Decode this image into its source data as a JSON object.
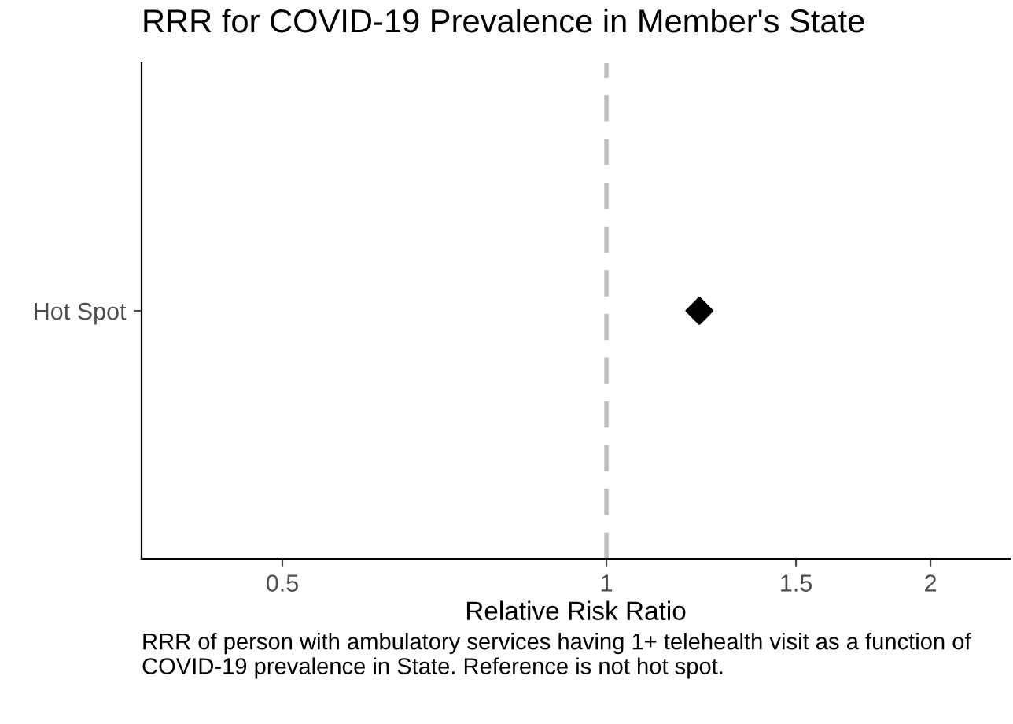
{
  "chart_data": {
    "type": "scatter",
    "title": "RRR for COVID-19 Prevalence in Member's State",
    "xlabel": "Relative Risk Ratio",
    "orientation": "horizontal",
    "categories": [
      "Hot Spot"
    ],
    "values": [
      1.22
    ],
    "color": "#000000",
    "marker": "diamond",
    "log": "x",
    "xlim": [
      0.37,
      2.37
    ],
    "xticks": [
      0.5,
      1,
      1.5,
      2
    ],
    "ref_lines": [
      {
        "axis": "x",
        "value": 1,
        "color": "#bfbfbf",
        "line_style": "dashed"
      }
    ],
    "grid": false,
    "legend": false,
    "annotations": [
      "RRR of person with ambulatory services having 1+ telehealth visit as a function of COVID-19 prevalence in State. Reference is not hot spot."
    ]
  }
}
